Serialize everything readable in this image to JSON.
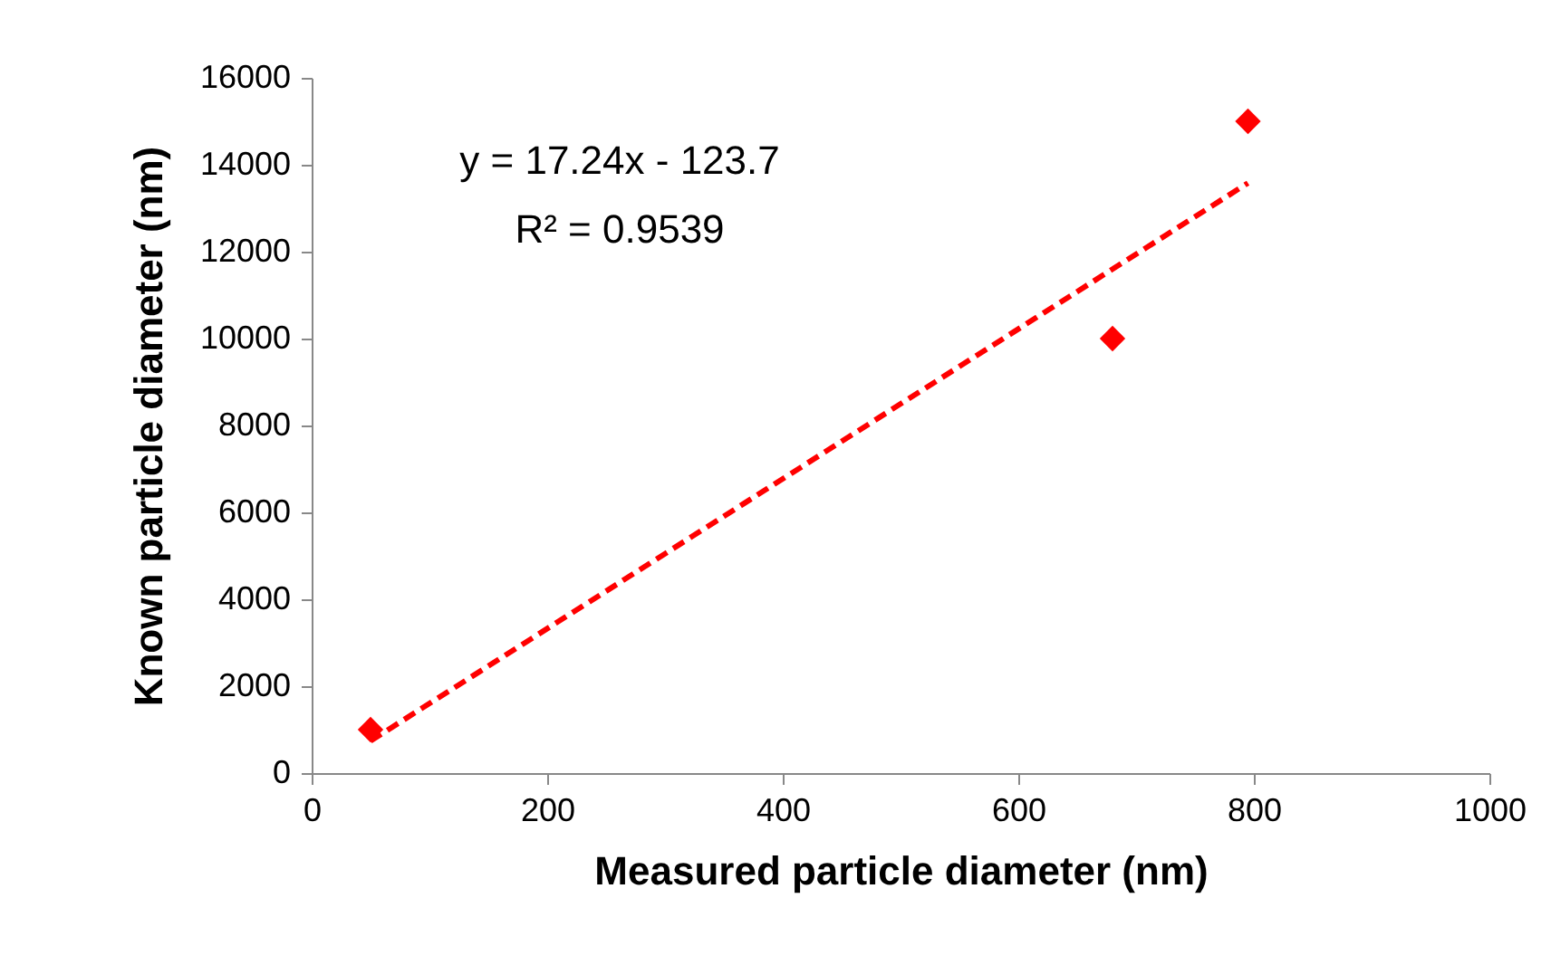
{
  "chart_data": {
    "type": "scatter",
    "xlabel": "Measured particle diameter (nm)",
    "ylabel": "Known particle diameter (nm)",
    "xlim": [
      0,
      1000
    ],
    "xticks": [
      0,
      200,
      400,
      600,
      800,
      1000
    ],
    "ylim": [
      0,
      16000
    ],
    "yticks": [
      0,
      2000,
      4000,
      6000,
      8000,
      10000,
      12000,
      14000,
      16000
    ],
    "grid": false,
    "line_style": "dashed",
    "annotations": [
      "y = 17.24x - 123.7",
      "R² = 0.9539"
    ],
    "series": [
      {
        "color": "#ff0000",
        "marker": "diamond",
        "x": [
          50,
          680,
          795
        ],
        "values": [
          1000,
          10000,
          15000
        ]
      },
      {
        "type": "line",
        "color": "#ff0000",
        "x": [
          50,
          795
        ],
        "values": [
          740,
          13580
        ]
      }
    ]
  }
}
